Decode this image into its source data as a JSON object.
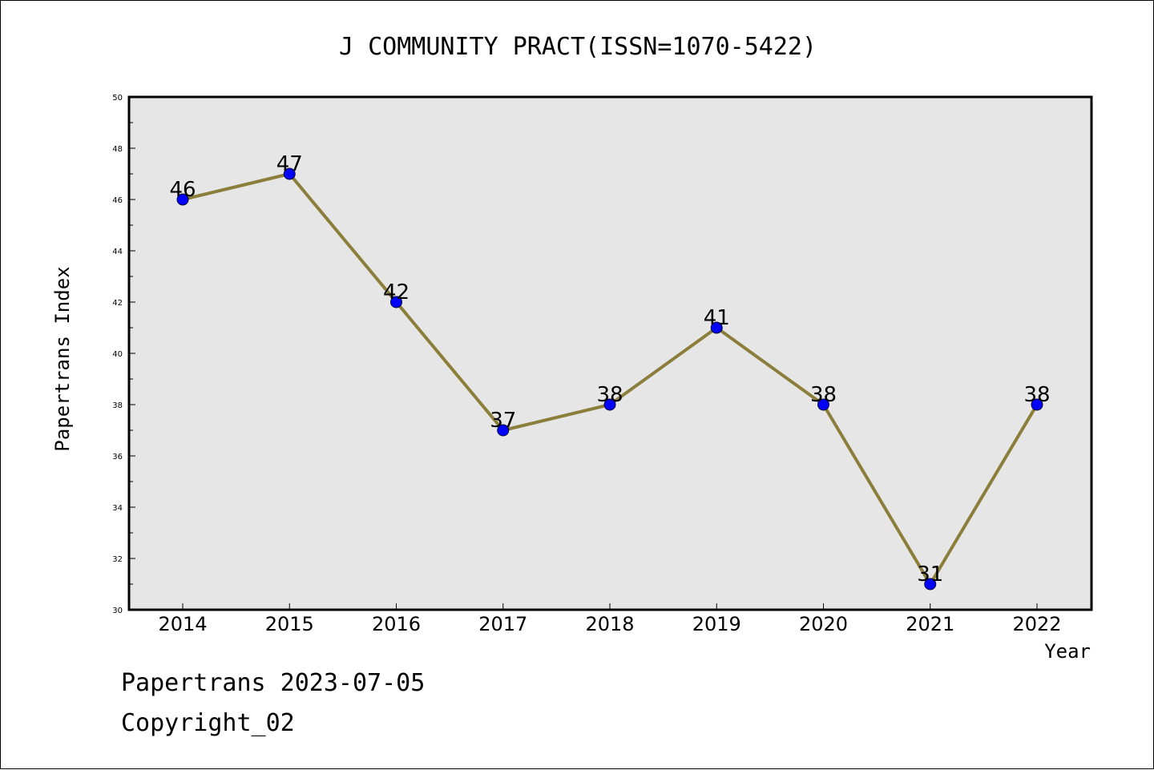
{
  "chart_data": {
    "type": "line",
    "title": "J COMMUNITY PRACT(ISSN=1070-5422)",
    "xlabel": "Year",
    "ylabel": "Papertrans Index",
    "x": [
      "2014",
      "2015",
      "2016",
      "2017",
      "2018",
      "2019",
      "2020",
      "2021",
      "2022"
    ],
    "series": [
      {
        "values": [
          46,
          47,
          42,
          37,
          38,
          41,
          38,
          31,
          38
        ]
      }
    ],
    "ylim": [
      30,
      50
    ],
    "yticks": [
      30,
      32,
      34,
      36,
      38,
      40,
      42,
      44,
      46,
      48,
      50
    ],
    "grid": false,
    "data_labels": true,
    "colors": {
      "line": "#8b7d3a",
      "marker": "#0000ff",
      "plot_background": "#e6e6e6",
      "frame": "#000000"
    }
  },
  "footer": {
    "line1": "Papertrans 2023-07-05",
    "line2": "Copyright_02"
  }
}
